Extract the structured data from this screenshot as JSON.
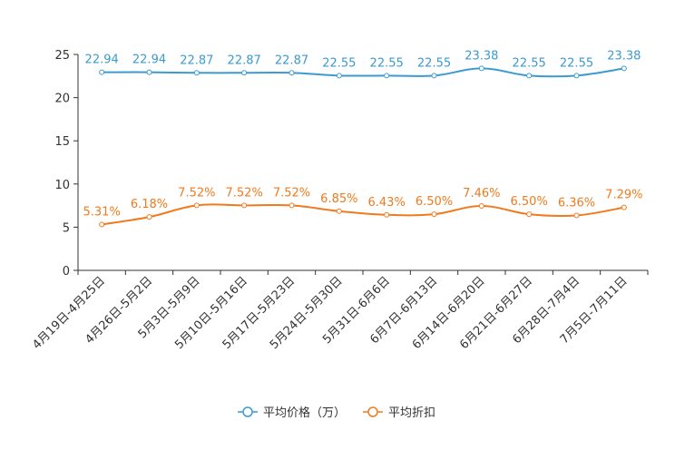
{
  "chart_data": {
    "type": "line",
    "categories": [
      "4月19日-4月25日",
      "4月26日-5月2日",
      "5月3日-5月9日",
      "5月10日-5月16日",
      "5月17日-5月23日",
      "5月24日-5月30日",
      "5月31日-6月6日",
      "6月7日-6月13日",
      "6月14日-6月20日",
      "6月21日-6月27日",
      "6月28日-7月4日",
      "7月5日-7月11日"
    ],
    "ylim": [
      0,
      25
    ],
    "yticks": [
      0,
      5,
      10,
      15,
      20,
      25
    ],
    "series": [
      {
        "name": "平均价格（万）",
        "color": "#3a9ad1",
        "values": [
          22.94,
          22.94,
          22.87,
          22.87,
          22.87,
          22.55,
          22.55,
          22.55,
          23.38,
          22.55,
          22.55,
          23.38
        ],
        "labels": [
          "22.94",
          "22.94",
          "22.87",
          "22.87",
          "22.87",
          "22.55",
          "22.55",
          "22.55",
          "23.38",
          "22.55",
          "22.55",
          "23.38"
        ]
      },
      {
        "name": "平均折扣",
        "color": "#f07a1d",
        "values": [
          5.31,
          6.18,
          7.52,
          7.52,
          7.52,
          6.85,
          6.43,
          6.5,
          7.46,
          6.5,
          6.36,
          7.29
        ],
        "labels": [
          "5.31%",
          "6.18%",
          "7.52%",
          "7.52%",
          "7.52%",
          "6.85%",
          "6.43%",
          "6.50%",
          "7.46%",
          "6.50%",
          "6.36%",
          "7.29%"
        ]
      }
    ],
    "legend_position": "bottom-center"
  }
}
